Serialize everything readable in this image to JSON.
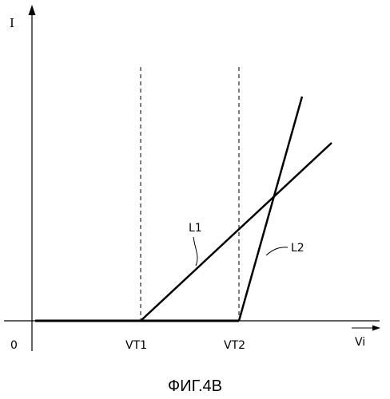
{
  "diagram": {
    "y_axis_label": "I",
    "x_axis_label": "Vi",
    "origin_label": "0",
    "threshold_labels": [
      "VT1",
      "VT2"
    ],
    "curve_labels": [
      "L1",
      "L2"
    ],
    "caption": "ФИГ.4B"
  }
}
